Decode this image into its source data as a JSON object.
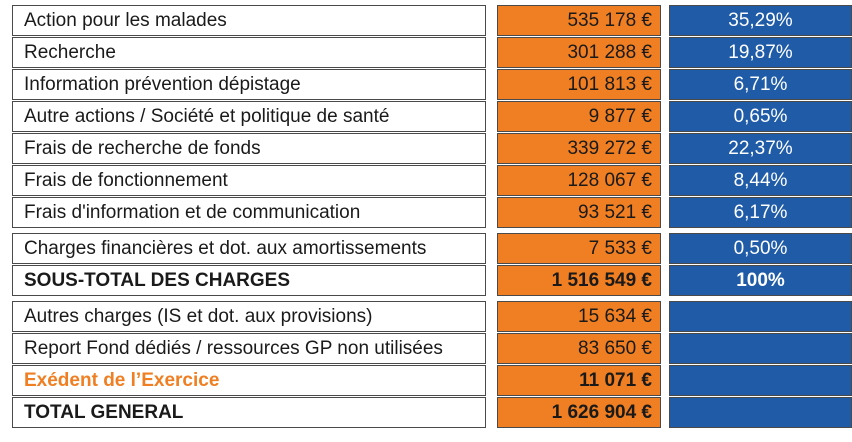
{
  "rows": [
    {
      "label": "Action pour les malades",
      "amount": "535 178 €",
      "percent": "35,29%",
      "bold": false
    },
    {
      "label": "Recherche",
      "amount": "301 288 €",
      "percent": "19,87%",
      "bold": false
    },
    {
      "label": "Information prévention dépistage",
      "amount": "101 813 €",
      "percent": "6,71%",
      "bold": false
    },
    {
      "label": "Autre actions / Société et politique de santé",
      "amount": "9 877 €",
      "percent": "0,65%",
      "bold": false
    },
    {
      "label": "Frais de recherche de fonds",
      "amount": "339 272 €",
      "percent": "22,37%",
      "bold": false
    },
    {
      "label": "Frais de fonctionnement",
      "amount": "128 067 €",
      "percent": "8,44%",
      "bold": false
    },
    {
      "label": "Frais d'information et de communication",
      "amount": "93 521 €",
      "percent": "6,17%",
      "bold": false
    },
    {
      "label": "Charges financières et dot. aux amortissements",
      "amount": "7 533 €",
      "percent": "0,50%",
      "bold": false
    },
    {
      "label": "SOUS-TOTAL DES CHARGES",
      "amount": "1 516 549 €",
      "percent": "100%",
      "bold": true
    },
    {
      "label": "Autres charges (IS et dot. aux provisions)",
      "amount": "15 634 €",
      "percent": "",
      "bold": false
    },
    {
      "label": "Report Fond dédiés / ressources GP non utilisées",
      "amount": "83 650 €",
      "percent": "",
      "bold": false
    },
    {
      "label": "Exédent de l’Exercice",
      "amount": "11 071 €",
      "percent": "",
      "bold": true,
      "label_color": "#ef7f22"
    },
    {
      "label": "TOTAL GENERAL",
      "amount": "1 626 904 €",
      "percent": "",
      "bold": true
    }
  ],
  "colors": {
    "amount_bg": "#ef7f22",
    "percent_bg": "#1f5ba7",
    "accent_text": "#ef7f22"
  }
}
